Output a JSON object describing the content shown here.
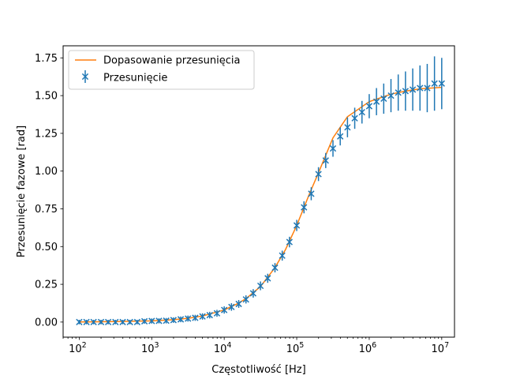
{
  "chart_data": {
    "type": "scatter",
    "xlabel": "Częstotliwość [Hz]",
    "ylabel": "Przesunięcie fazowe [rad]",
    "x_scale": "log",
    "xlim": [
      60,
      15000000
    ],
    "ylim": [
      -0.1,
      1.83
    ],
    "grid": false,
    "legend_position": "top-left",
    "x_ticks": [
      {
        "value": 100,
        "base": "10",
        "exp": "2"
      },
      {
        "value": 1000,
        "base": "10",
        "exp": "3"
      },
      {
        "value": 10000,
        "base": "10",
        "exp": "4"
      },
      {
        "value": 100000,
        "base": "10",
        "exp": "5"
      },
      {
        "value": 1000000,
        "base": "10",
        "exp": "6"
      },
      {
        "value": 10000000,
        "base": "10",
        "exp": "7"
      }
    ],
    "y_ticks": [
      {
        "value": 0.0,
        "label": "0.00"
      },
      {
        "value": 0.25,
        "label": "0.25"
      },
      {
        "value": 0.5,
        "label": "0.50"
      },
      {
        "value": 0.75,
        "label": "0.75"
      },
      {
        "value": 1.0,
        "label": "1.00"
      },
      {
        "value": 1.25,
        "label": "1.25"
      },
      {
        "value": 1.5,
        "label": "1.50"
      },
      {
        "value": 1.75,
        "label": "1.75"
      }
    ],
    "series": [
      {
        "name": "Dopasowanie przesunięcia",
        "kind": "line",
        "color": "#ff7f0e",
        "x": [
          100,
          316,
          1000,
          2000,
          3162,
          5000,
          10000,
          15000,
          20000,
          31623,
          50000,
          70000,
          100000,
          150000,
          200000,
          316228,
          500000,
          1000000,
          2000000,
          3162278,
          5000000,
          10000000
        ],
        "y": [
          0.001,
          0.003,
          0.008,
          0.016,
          0.025,
          0.04,
          0.08,
          0.12,
          0.155,
          0.235,
          0.36,
          0.48,
          0.64,
          0.85,
          0.99,
          1.22,
          1.36,
          1.46,
          1.51,
          1.53,
          1.545,
          1.555
        ]
      },
      {
        "name": "Przesunięcie",
        "kind": "errorbar",
        "color": "#1f77b4",
        "marker": "x",
        "x": [
          100,
          126,
          158,
          200,
          251,
          316,
          398,
          501,
          631,
          794,
          1000,
          1259,
          1585,
          1995,
          2512,
          3162,
          3981,
          5012,
          6310,
          7943,
          10000,
          12589,
          15849,
          19953,
          25119,
          31623,
          39811,
          50119,
          63096,
          79433,
          100000,
          125893,
          158489,
          199526,
          251189,
          316228,
          398107,
          501187,
          630957,
          794328,
          1000000,
          1258925,
          1584893,
          1995262,
          2511886,
          3162278,
          3981072,
          5011872,
          6309573,
          7943282,
          10000000
        ],
        "y": [
          0.0,
          0.0,
          0.0,
          0.0,
          0.0,
          0.0,
          0.0,
          0.0,
          0.0,
          0.005,
          0.007,
          0.008,
          0.009,
          0.013,
          0.018,
          0.023,
          0.028,
          0.037,
          0.046,
          0.058,
          0.08,
          0.1,
          0.12,
          0.15,
          0.19,
          0.24,
          0.29,
          0.36,
          0.44,
          0.53,
          0.64,
          0.76,
          0.85,
          0.98,
          1.07,
          1.15,
          1.23,
          1.29,
          1.35,
          1.39,
          1.43,
          1.46,
          1.48,
          1.5,
          1.52,
          1.53,
          1.54,
          1.55,
          1.55,
          1.58,
          1.58
        ],
        "yerr": [
          0.015,
          0.015,
          0.015,
          0.015,
          0.015,
          0.015,
          0.015,
          0.015,
          0.015,
          0.016,
          0.017,
          0.017,
          0.018,
          0.018,
          0.019,
          0.02,
          0.02,
          0.021,
          0.022,
          0.023,
          0.024,
          0.025,
          0.026,
          0.027,
          0.028,
          0.029,
          0.03,
          0.031,
          0.033,
          0.035,
          0.037,
          0.04,
          0.043,
          0.046,
          0.05,
          0.055,
          0.06,
          0.066,
          0.07,
          0.075,
          0.08,
          0.09,
          0.1,
          0.11,
          0.12,
          0.13,
          0.14,
          0.15,
          0.16,
          0.18,
          0.17
        ]
      }
    ]
  }
}
